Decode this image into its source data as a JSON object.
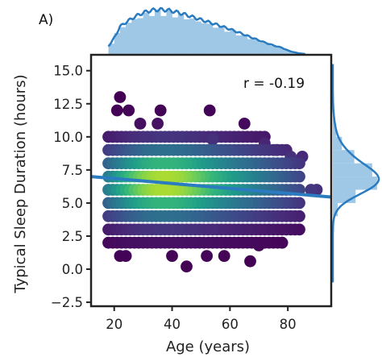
{
  "chart_data": {
    "type": "scatter",
    "panel_label": "A)",
    "xlabel": "Age (years)",
    "ylabel": "Typical Sleep Duration (hours)",
    "xlim": [
      12,
      95
    ],
    "ylim": [
      -2.8,
      16.2
    ],
    "x_ticks": [
      20,
      40,
      60,
      80
    ],
    "y_ticks": [
      -2.5,
      0.0,
      2.5,
      5.0,
      7.5,
      10.0,
      12.5,
      15.0
    ],
    "x_tick_labels": [
      "20",
      "40",
      "60",
      "80"
    ],
    "y_tick_labels": [
      "−2.5",
      "0.0",
      "2.5",
      "5.0",
      "7.5",
      "10.0",
      "12.5",
      "15.0"
    ],
    "annotation": "r = -0.19",
    "regression_line": {
      "x": [
        12,
        95
      ],
      "y": [
        7.0,
        5.45
      ]
    },
    "style": {
      "point_colormap": "viridis",
      "point_outline": "#3b0f4f",
      "marginal_color": "#2a7bc0",
      "marginal_fill": "#9ec8e6"
    },
    "age_range": [
      18,
      85
    ],
    "sleep_values_dense": [
      2.0,
      3.0,
      4.0,
      5.0,
      6.0,
      7.0,
      8.0,
      9.0,
      10.0
    ],
    "outliers": [
      {
        "x": 22,
        "y": 13.0
      },
      {
        "x": 21,
        "y": 12.0
      },
      {
        "x": 25,
        "y": 12.0
      },
      {
        "x": 29,
        "y": 11.0
      },
      {
        "x": 35,
        "y": 11.0
      },
      {
        "x": 53,
        "y": 12.0
      },
      {
        "x": 36,
        "y": 12.0
      },
      {
        "x": 65,
        "y": 11.0
      },
      {
        "x": 81,
        "y": 8.5
      },
      {
        "x": 85,
        "y": 8.5
      },
      {
        "x": 76,
        "y": 9.0
      },
      {
        "x": 72,
        "y": 9.5
      },
      {
        "x": 54,
        "y": 9.8
      },
      {
        "x": 88,
        "y": 6.0
      },
      {
        "x": 90,
        "y": 6.0
      },
      {
        "x": 22,
        "y": 1.0
      },
      {
        "x": 24,
        "y": 1.0
      },
      {
        "x": 40,
        "y": 1.0
      },
      {
        "x": 45,
        "y": 0.2
      },
      {
        "x": 52,
        "y": 1.0
      },
      {
        "x": 58,
        "y": 1.0
      },
      {
        "x": 67,
        "y": 0.6
      },
      {
        "x": 70,
        "y": 1.8
      },
      {
        "x": 78,
        "y": 2.0
      }
    ]
  }
}
